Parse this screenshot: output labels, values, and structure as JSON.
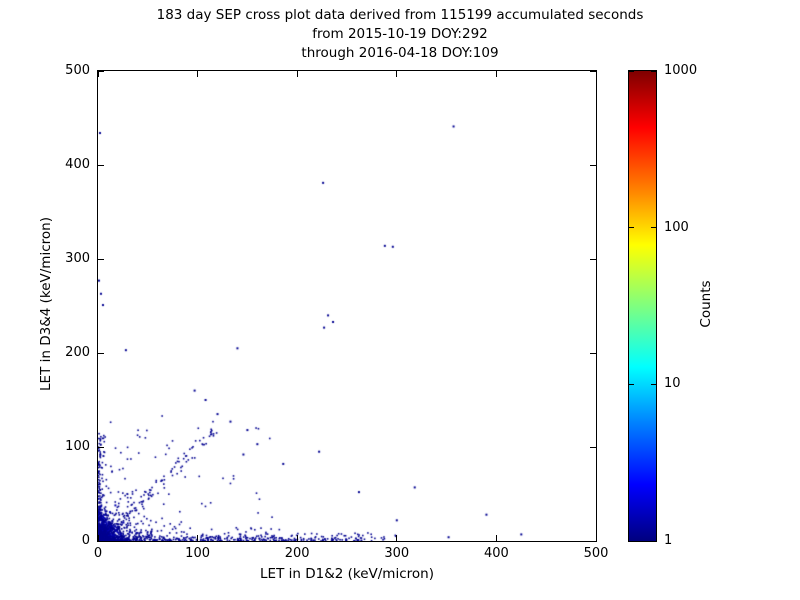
{
  "figure": {
    "title_lines": [
      "183 day SEP cross plot data derived from 115199 accumulated seconds",
      "from 2015-10-19 DOY:292",
      "through 2016-04-18 DOY:109"
    ]
  },
  "chart_data": {
    "type": "scatter",
    "title": "183 day SEP cross plot data derived from 115199 accumulated seconds from 2015-10-19 DOY:292 through 2016-04-18 DOY:109",
    "xlabel": "LET in D1&2 (keV/micron)",
    "ylabel": "LET in D3&4 (keV/micron)",
    "xlim": [
      0,
      500
    ],
    "ylim": [
      0,
      500
    ],
    "xticks": [
      0,
      100,
      200,
      300,
      400,
      500
    ],
    "yticks": [
      0,
      100,
      200,
      300,
      400,
      500
    ],
    "grid": false,
    "legend": "none",
    "colorbar": {
      "label": "Counts",
      "scale": "log",
      "min": 1,
      "max": 1000,
      "ticks": [
        1,
        10,
        100,
        1000
      ],
      "colormap": "jet"
    },
    "point_color_low": "#000090",
    "notable_points": [
      [
        357,
        441
      ],
      [
        2,
        434
      ],
      [
        226,
        381
      ],
      [
        288,
        314
      ],
      [
        296,
        313
      ],
      [
        1,
        277
      ],
      [
        3,
        263
      ],
      [
        5,
        251
      ],
      [
        231,
        240
      ],
      [
        236,
        233
      ],
      [
        227,
        227
      ],
      [
        140,
        205
      ],
      [
        28,
        203
      ],
      [
        120,
        135
      ],
      [
        133,
        127
      ],
      [
        150,
        118
      ],
      [
        108,
        150
      ],
      [
        97,
        160
      ],
      [
        160,
        103
      ],
      [
        146,
        92
      ],
      [
        186,
        82
      ],
      [
        222,
        95
      ],
      [
        262,
        52
      ],
      [
        318,
        57
      ],
      [
        390,
        28
      ],
      [
        300,
        22
      ],
      [
        425,
        7
      ],
      [
        352,
        4
      ]
    ],
    "clusters": [
      {
        "name": "origin-dense-core",
        "dist": "exp",
        "n": 900,
        "x_scale": 6,
        "y_scale": 6,
        "color": "#0000b0",
        "size": 2
      },
      {
        "name": "origin-halo",
        "dist": "exp",
        "n": 380,
        "x_scale": 20,
        "y_scale": 17,
        "color": "#000090",
        "size": 1.6
      },
      {
        "name": "x-axis-band",
        "dist": "strip-x",
        "n": 430,
        "x_min": 0,
        "x_max": 270,
        "pow": 1.5,
        "y_scale": 2.6,
        "color": "#000090",
        "size": 1.6
      },
      {
        "name": "x-axis-sparse",
        "dist": "strip-x",
        "n": 55,
        "x_min": 0,
        "x_max": 300,
        "pow": 1.2,
        "y_scale": 7,
        "color": "#000090",
        "size": 1.6
      },
      {
        "name": "y-axis-band",
        "dist": "strip-y",
        "n": 140,
        "y_min": 0,
        "y_max": 115,
        "pow": 1.6,
        "x_scale": 2.4,
        "color": "#000090",
        "size": 1.6
      },
      {
        "name": "diagonal-band",
        "dist": "diag",
        "n": 110,
        "t_min": 4,
        "t_max": 118,
        "pow": 1.3,
        "spread": 6,
        "color": "#000090",
        "size": 1.6
      },
      {
        "name": "inner-scatter",
        "dist": "box",
        "n": 75,
        "x_max": 175,
        "y_max": 140,
        "powx": 1.4,
        "powy": 1.5,
        "color": "#000090",
        "size": 1.6
      }
    ],
    "seed": 7
  }
}
